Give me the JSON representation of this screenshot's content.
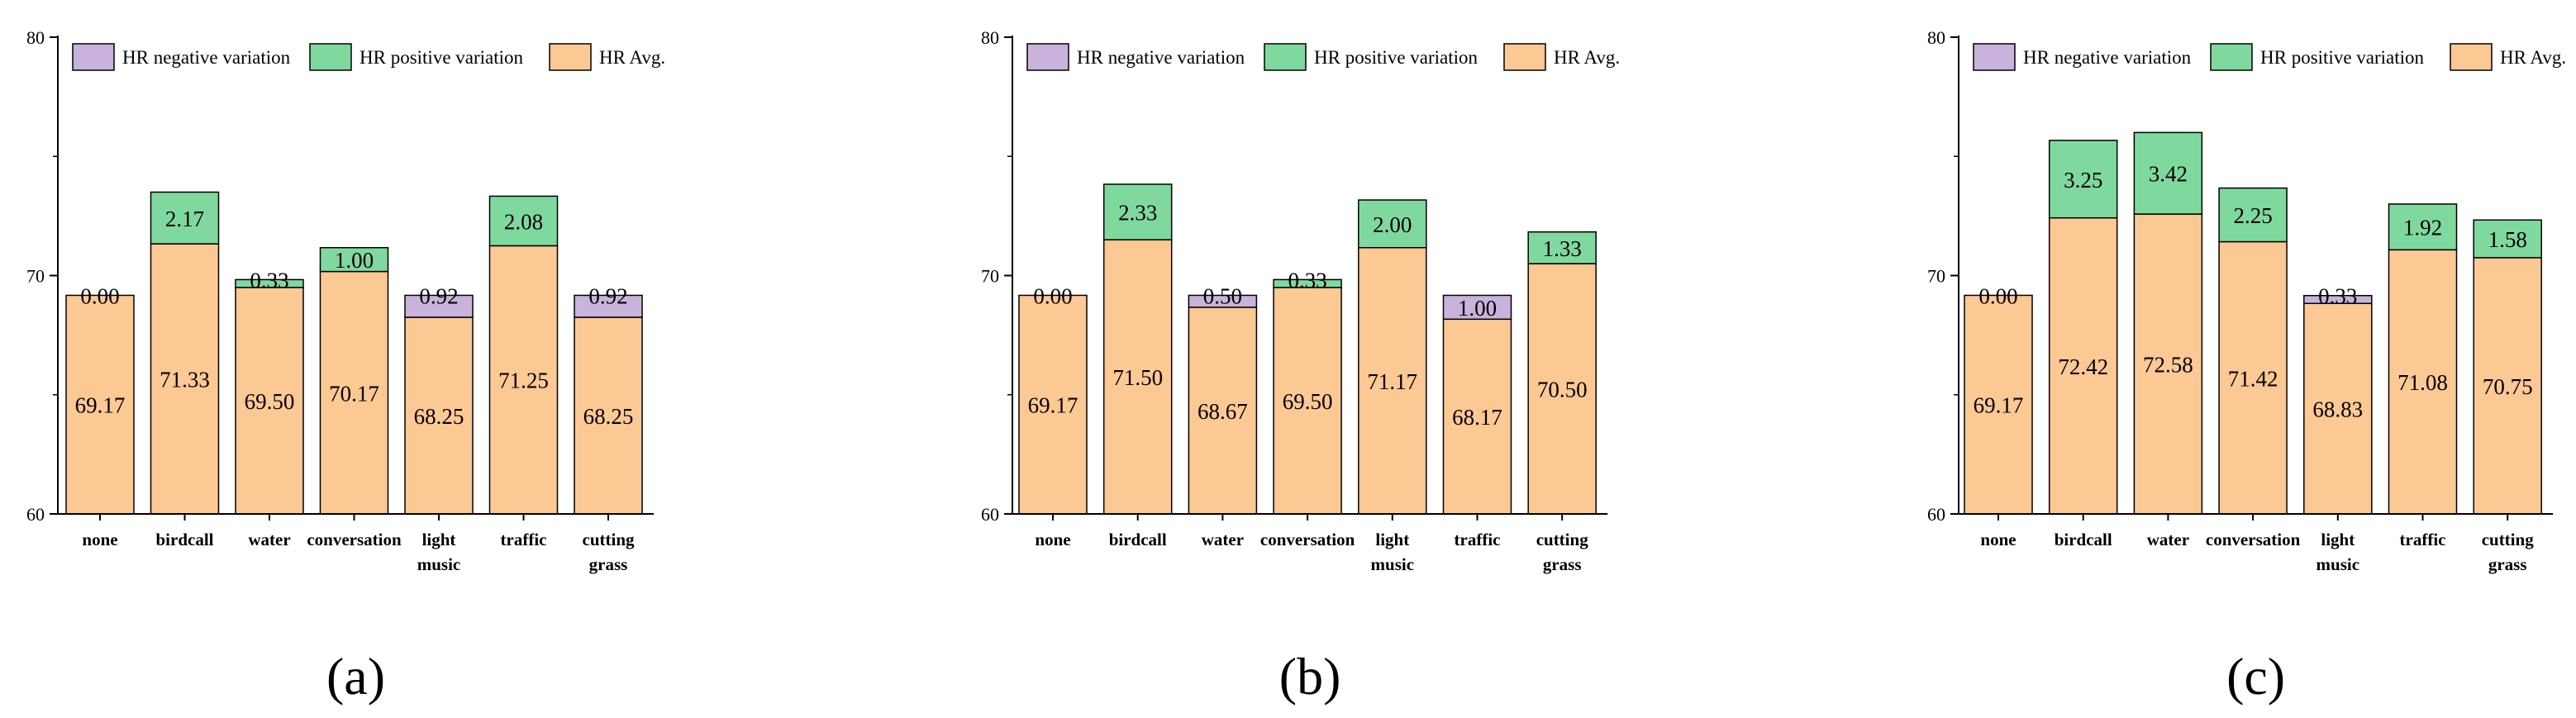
{
  "colors": {
    "negative": "#c9b3dd",
    "positive": "#7fd99e",
    "avg": "#fcc894",
    "stroke": "#000000"
  },
  "chart_data": [
    {
      "type": "bar",
      "stacked": true,
      "panel_label": "(a)",
      "ylim": [
        60,
        80
      ],
      "yticks": [
        "60",
        "70",
        "80"
      ],
      "legend": [
        "HR negative variation",
        "HR positive variation",
        "HR Avg."
      ],
      "categories": [
        [
          "none"
        ],
        [
          "birdcall"
        ],
        [
          "water"
        ],
        [
          "conversation"
        ],
        [
          "light",
          "music"
        ],
        [
          "traffic"
        ],
        [
          "cutting",
          "grass"
        ]
      ],
      "avg": [
        69.17,
        71.33,
        69.5,
        70.17,
        68.25,
        71.25,
        68.25
      ],
      "avg_labels": [
        "69.17",
        "71.33",
        "69.50",
        "70.17",
        "68.25",
        "71.25",
        "68.25"
      ],
      "variation": [
        0.0,
        2.17,
        0.33,
        1.0,
        -0.92,
        2.08,
        -0.92
      ],
      "variation_labels": [
        "0.00",
        "2.17",
        "0.33",
        "1.00",
        "0.92",
        "2.08",
        "0.92"
      ]
    },
    {
      "type": "bar",
      "stacked": true,
      "panel_label": "(b)",
      "ylim": [
        60,
        80
      ],
      "yticks": [
        "60",
        "70",
        "80"
      ],
      "legend": [
        "HR negative variation",
        "HR positive variation",
        "HR Avg."
      ],
      "categories": [
        [
          "none"
        ],
        [
          "birdcall"
        ],
        [
          "water"
        ],
        [
          "conversation"
        ],
        [
          "light",
          "music"
        ],
        [
          "traffic"
        ],
        [
          "cutting",
          "grass"
        ]
      ],
      "avg": [
        69.17,
        71.5,
        68.67,
        69.5,
        71.17,
        68.17,
        70.5
      ],
      "avg_labels": [
        "69.17",
        "71.50",
        "68.67",
        "69.50",
        "71.17",
        "68.17",
        "70.50"
      ],
      "variation": [
        0.0,
        2.33,
        -0.5,
        0.33,
        2.0,
        -1.0,
        1.33
      ],
      "variation_labels": [
        "0.00",
        "2.33",
        "0.50",
        "0.33",
        "2.00",
        "1.00",
        "1.33"
      ]
    },
    {
      "type": "bar",
      "stacked": true,
      "panel_label": "(c)",
      "ylim": [
        60,
        80
      ],
      "yticks": [
        "60",
        "70",
        "80"
      ],
      "legend": [
        "HR negative variation",
        "HR positive variation",
        "HR Avg."
      ],
      "categories": [
        [
          "none"
        ],
        [
          "birdcall"
        ],
        [
          "water"
        ],
        [
          "conversation"
        ],
        [
          "light",
          "music"
        ],
        [
          "traffic"
        ],
        [
          "cutting",
          "grass"
        ]
      ],
      "avg": [
        69.17,
        72.42,
        72.58,
        71.42,
        68.83,
        71.08,
        70.75
      ],
      "avg_labels": [
        "69.17",
        "72.42",
        "72.58",
        "71.42",
        "68.83",
        "71.08",
        "70.75"
      ],
      "variation": [
        0.0,
        3.25,
        3.42,
        2.25,
        -0.33,
        1.92,
        1.58
      ],
      "variation_labels": [
        "0.00",
        "3.25",
        "3.42",
        "2.25",
        "0.33",
        "1.92",
        "1.58"
      ]
    }
  ]
}
